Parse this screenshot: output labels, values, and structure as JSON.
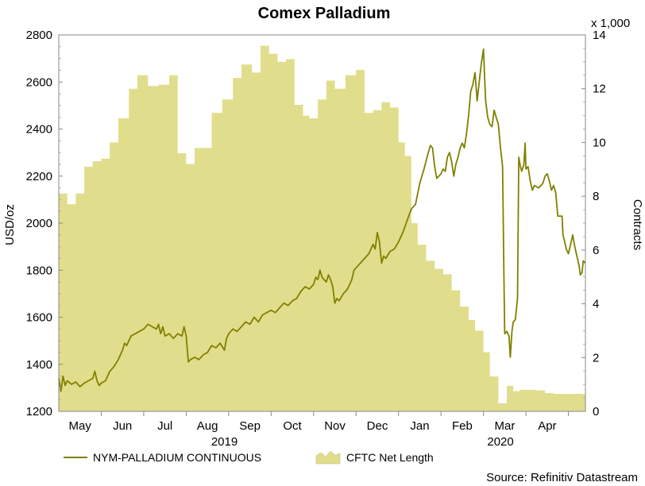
{
  "chart_data": {
    "type": "line+area",
    "title": "Comex Palladium",
    "y_left_label": "USD/oz",
    "y_left_range": [
      1200,
      2800
    ],
    "y_left_ticks": [
      1200,
      1400,
      1600,
      1800,
      2000,
      2200,
      2400,
      2600,
      2800
    ],
    "y_right_label": "Contracts",
    "y_right_multiplier": "x 1,000",
    "y_right_range": [
      0,
      14
    ],
    "y_right_ticks": [
      0,
      2,
      4,
      6,
      8,
      10,
      12,
      14
    ],
    "x_range": [
      0,
      12.4
    ],
    "months": [
      {
        "label": "May",
        "pos": 0.5
      },
      {
        "label": "Jun",
        "pos": 1.5
      },
      {
        "label": "Jul",
        "pos": 2.5
      },
      {
        "label": "Aug",
        "pos": 3.5
      },
      {
        "label": "Sep",
        "pos": 4.5
      },
      {
        "label": "Oct",
        "pos": 5.5
      },
      {
        "label": "Nov",
        "pos": 6.5
      },
      {
        "label": "Dec",
        "pos": 7.5
      },
      {
        "label": "Jan",
        "pos": 8.5
      },
      {
        "label": "Feb",
        "pos": 9.5
      },
      {
        "label": "Mar",
        "pos": 10.5
      },
      {
        "label": "Apr",
        "pos": 11.5
      }
    ],
    "month_boundaries": [
      1,
      2,
      3,
      4,
      5,
      6,
      7,
      8,
      9,
      10,
      11,
      12
    ],
    "years": [
      {
        "label": "2019",
        "pos": 3.9
      },
      {
        "label": "2020",
        "pos": 10.4
      }
    ],
    "series": [
      {
        "name": "NYM-PALLADIUM CONTINUOUS",
        "axis": "left",
        "color": "#808000",
        "kind": "line",
        "points": [
          [
            0.0,
            1340
          ],
          [
            0.05,
            1285
          ],
          [
            0.1,
            1350
          ],
          [
            0.15,
            1310
          ],
          [
            0.2,
            1330
          ],
          [
            0.3,
            1315
          ],
          [
            0.4,
            1325
          ],
          [
            0.5,
            1305
          ],
          [
            0.6,
            1320
          ],
          [
            0.7,
            1330
          ],
          [
            0.8,
            1340
          ],
          [
            0.85,
            1370
          ],
          [
            0.9,
            1330
          ],
          [
            0.95,
            1310
          ],
          [
            1.0,
            1320
          ],
          [
            1.1,
            1330
          ],
          [
            1.2,
            1370
          ],
          [
            1.3,
            1390
          ],
          [
            1.4,
            1420
          ],
          [
            1.5,
            1460
          ],
          [
            1.55,
            1490
          ],
          [
            1.6,
            1480
          ],
          [
            1.7,
            1520
          ],
          [
            1.8,
            1530
          ],
          [
            1.9,
            1540
          ],
          [
            2.0,
            1550
          ],
          [
            2.1,
            1570
          ],
          [
            2.2,
            1560
          ],
          [
            2.3,
            1550
          ],
          [
            2.35,
            1570
          ],
          [
            2.4,
            1530
          ],
          [
            2.45,
            1560
          ],
          [
            2.5,
            1520
          ],
          [
            2.6,
            1530
          ],
          [
            2.7,
            1510
          ],
          [
            2.8,
            1530
          ],
          [
            2.9,
            1520
          ],
          [
            2.95,
            1560
          ],
          [
            3.0,
            1520
          ],
          [
            3.05,
            1410
          ],
          [
            3.1,
            1420
          ],
          [
            3.2,
            1430
          ],
          [
            3.3,
            1420
          ],
          [
            3.4,
            1440
          ],
          [
            3.5,
            1450
          ],
          [
            3.6,
            1480
          ],
          [
            3.7,
            1470
          ],
          [
            3.8,
            1490
          ],
          [
            3.9,
            1460
          ],
          [
            3.95,
            1510
          ],
          [
            4.0,
            1530
          ],
          [
            4.1,
            1550
          ],
          [
            4.2,
            1540
          ],
          [
            4.3,
            1560
          ],
          [
            4.4,
            1580
          ],
          [
            4.5,
            1570
          ],
          [
            4.6,
            1600
          ],
          [
            4.7,
            1580
          ],
          [
            4.8,
            1610
          ],
          [
            4.9,
            1620
          ],
          [
            5.0,
            1630
          ],
          [
            5.1,
            1620
          ],
          [
            5.2,
            1640
          ],
          [
            5.3,
            1660
          ],
          [
            5.4,
            1650
          ],
          [
            5.5,
            1670
          ],
          [
            5.6,
            1680
          ],
          [
            5.7,
            1710
          ],
          [
            5.8,
            1730
          ],
          [
            5.9,
            1720
          ],
          [
            6.0,
            1740
          ],
          [
            6.05,
            1770
          ],
          [
            6.1,
            1760
          ],
          [
            6.15,
            1800
          ],
          [
            6.2,
            1770
          ],
          [
            6.3,
            1750
          ],
          [
            6.35,
            1780
          ],
          [
            6.4,
            1760
          ],
          [
            6.45,
            1730
          ],
          [
            6.5,
            1660
          ],
          [
            6.55,
            1680
          ],
          [
            6.6,
            1670
          ],
          [
            6.7,
            1700
          ],
          [
            6.8,
            1720
          ],
          [
            6.9,
            1760
          ],
          [
            6.95,
            1800
          ],
          [
            7.0,
            1810
          ],
          [
            7.1,
            1830
          ],
          [
            7.2,
            1850
          ],
          [
            7.3,
            1870
          ],
          [
            7.4,
            1910
          ],
          [
            7.45,
            1890
          ],
          [
            7.5,
            1960
          ],
          [
            7.55,
            1920
          ],
          [
            7.6,
            1830
          ],
          [
            7.65,
            1860
          ],
          [
            7.7,
            1850
          ],
          [
            7.8,
            1880
          ],
          [
            7.9,
            1890
          ],
          [
            8.0,
            1920
          ],
          [
            8.1,
            1960
          ],
          [
            8.2,
            2010
          ],
          [
            8.3,
            2060
          ],
          [
            8.4,
            2080
          ],
          [
            8.5,
            2170
          ],
          [
            8.6,
            2230
          ],
          [
            8.7,
            2300
          ],
          [
            8.75,
            2330
          ],
          [
            8.8,
            2320
          ],
          [
            8.85,
            2240
          ],
          [
            8.9,
            2190
          ],
          [
            9.0,
            2210
          ],
          [
            9.05,
            2230
          ],
          [
            9.1,
            2220
          ],
          [
            9.15,
            2280
          ],
          [
            9.2,
            2300
          ],
          [
            9.25,
            2260
          ],
          [
            9.3,
            2200
          ],
          [
            9.35,
            2250
          ],
          [
            9.4,
            2280
          ],
          [
            9.45,
            2320
          ],
          [
            9.5,
            2340
          ],
          [
            9.55,
            2320
          ],
          [
            9.6,
            2380
          ],
          [
            9.65,
            2460
          ],
          [
            9.7,
            2560
          ],
          [
            9.75,
            2590
          ],
          [
            9.8,
            2640
          ],
          [
            9.85,
            2520
          ],
          [
            9.9,
            2600
          ],
          [
            9.95,
            2680
          ],
          [
            10.0,
            2740
          ],
          [
            10.02,
            2650
          ],
          [
            10.05,
            2520
          ],
          [
            10.1,
            2450
          ],
          [
            10.15,
            2420
          ],
          [
            10.2,
            2410
          ],
          [
            10.25,
            2480
          ],
          [
            10.3,
            2450
          ],
          [
            10.35,
            2420
          ],
          [
            10.4,
            2320
          ],
          [
            10.45,
            2240
          ],
          [
            10.48,
            1800
          ],
          [
            10.5,
            1530
          ],
          [
            10.55,
            1540
          ],
          [
            10.6,
            1520
          ],
          [
            10.63,
            1430
          ],
          [
            10.67,
            1540
          ],
          [
            10.7,
            1580
          ],
          [
            10.75,
            1590
          ],
          [
            10.8,
            1680
          ],
          [
            10.83,
            2280
          ],
          [
            10.87,
            2240
          ],
          [
            10.9,
            2220
          ],
          [
            10.95,
            2250
          ],
          [
            10.98,
            2340
          ],
          [
            11.0,
            2230
          ],
          [
            11.05,
            2240
          ],
          [
            11.1,
            2180
          ],
          [
            11.15,
            2140
          ],
          [
            11.2,
            2160
          ],
          [
            11.3,
            2150
          ],
          [
            11.4,
            2170
          ],
          [
            11.45,
            2200
          ],
          [
            11.5,
            2210
          ],
          [
            11.55,
            2180
          ],
          [
            11.6,
            2140
          ],
          [
            11.65,
            2160
          ],
          [
            11.7,
            2130
          ],
          [
            11.75,
            2030
          ],
          [
            11.8,
            2030
          ],
          [
            11.85,
            2030
          ],
          [
            11.87,
            1950
          ],
          [
            11.9,
            1930
          ],
          [
            11.95,
            1890
          ],
          [
            12.0,
            1870
          ],
          [
            12.05,
            1910
          ],
          [
            12.1,
            1950
          ],
          [
            12.15,
            1900
          ],
          [
            12.2,
            1860
          ],
          [
            12.25,
            1820
          ],
          [
            12.28,
            1780
          ],
          [
            12.32,
            1790
          ],
          [
            12.35,
            1840
          ],
          [
            12.4,
            1830
          ]
        ]
      },
      {
        "name": "CFTC Net Length",
        "axis": "right",
        "color": "#e0de8c",
        "kind": "area-step",
        "steps": [
          [
            0.0,
            8.1
          ],
          [
            0.2,
            7.7
          ],
          [
            0.4,
            8.1
          ],
          [
            0.6,
            9.1
          ],
          [
            0.8,
            9.3
          ],
          [
            1.0,
            9.4
          ],
          [
            1.2,
            10.0
          ],
          [
            1.4,
            10.9
          ],
          [
            1.65,
            12.0
          ],
          [
            1.85,
            12.5
          ],
          [
            2.1,
            12.1
          ],
          [
            2.35,
            12.15
          ],
          [
            2.6,
            12.5
          ],
          [
            2.8,
            9.6
          ],
          [
            3.0,
            9.2
          ],
          [
            3.2,
            9.8
          ],
          [
            3.6,
            11.1
          ],
          [
            3.85,
            11.6
          ],
          [
            4.1,
            12.4
          ],
          [
            4.3,
            12.9
          ],
          [
            4.55,
            12.6
          ],
          [
            4.75,
            13.6
          ],
          [
            4.95,
            13.3
          ],
          [
            5.15,
            13.0
          ],
          [
            5.35,
            13.1
          ],
          [
            5.55,
            11.4
          ],
          [
            5.75,
            11.0
          ],
          [
            5.9,
            10.9
          ],
          [
            6.1,
            11.6
          ],
          [
            6.3,
            12.3
          ],
          [
            6.5,
            12.0
          ],
          [
            6.75,
            12.5
          ],
          [
            7.0,
            12.7
          ],
          [
            7.2,
            11.1
          ],
          [
            7.4,
            11.2
          ],
          [
            7.6,
            11.5
          ],
          [
            7.8,
            11.3
          ],
          [
            8.0,
            10.0
          ],
          [
            8.15,
            9.5
          ],
          [
            8.3,
            7.0
          ],
          [
            8.45,
            6.2
          ],
          [
            8.65,
            5.6
          ],
          [
            8.85,
            5.3
          ],
          [
            9.05,
            5.1
          ],
          [
            9.25,
            4.5
          ],
          [
            9.45,
            3.9
          ],
          [
            9.65,
            3.4
          ],
          [
            9.8,
            3.0
          ],
          [
            10.0,
            2.2
          ],
          [
            10.15,
            1.3
          ],
          [
            10.35,
            0.3
          ],
          [
            10.55,
            0.95
          ],
          [
            10.7,
            0.75
          ],
          [
            10.85,
            0.8
          ],
          [
            11.05,
            0.8
          ],
          [
            11.25,
            0.78
          ],
          [
            11.45,
            0.68
          ],
          [
            11.65,
            0.65
          ],
          [
            11.85,
            0.65
          ]
        ],
        "end": 12.4
      }
    ],
    "legend": [
      {
        "label": "NYM-PALLADIUM CONTINUOUS",
        "kind": "line"
      },
      {
        "label": "CFTC Net Length",
        "kind": "area"
      }
    ],
    "source": "Source: Refinitiv Datastream"
  }
}
